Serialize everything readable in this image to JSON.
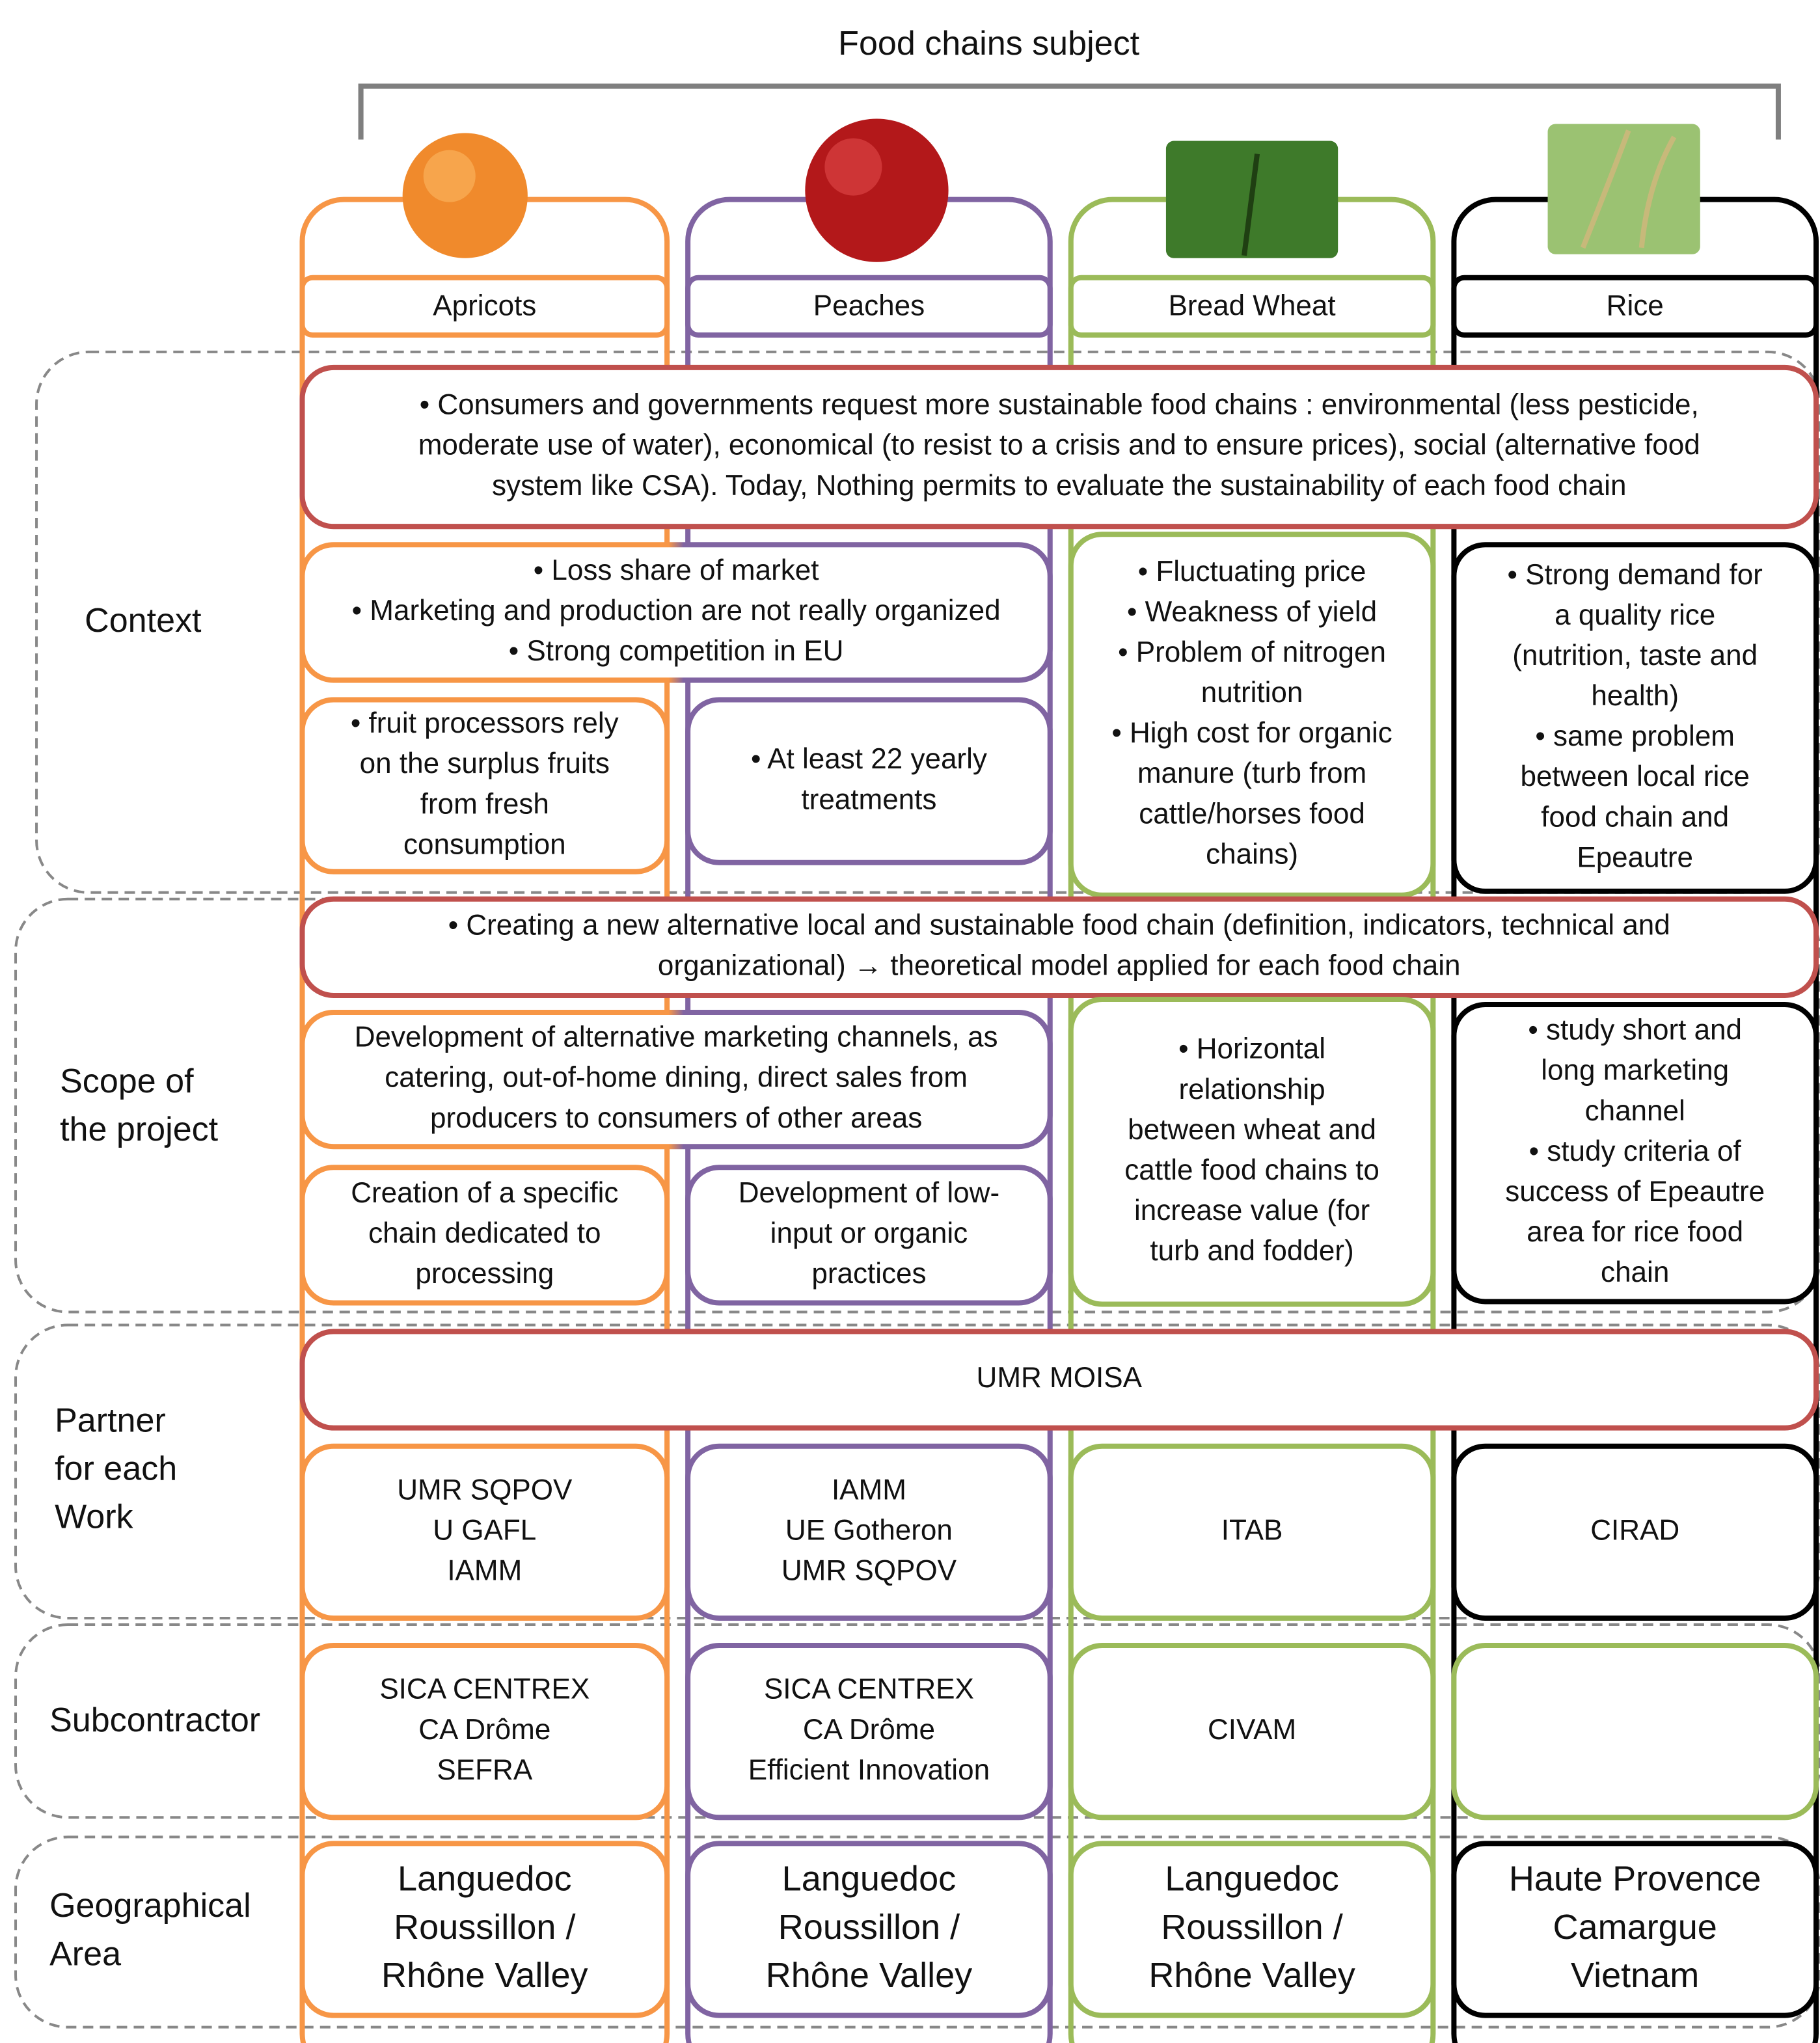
{
  "title": "Food chains subject",
  "columns": [
    "Apricots",
    "Peaches",
    "Bread Wheat",
    "Rice"
  ],
  "row_labels": [
    [
      "Context"
    ],
    [
      "Scope of",
      "the project"
    ],
    [
      "Partner",
      "for each",
      "Work"
    ],
    [
      "Subcontractor"
    ],
    [
      "Geographical",
      "Area"
    ]
  ],
  "cells": [
    [
      "• Consumers and governments request more sustainable food chains : environmental (less pesticide,",
      "moderate use of water), economical (to resist to a crisis and to ensure prices), social (alternative food",
      "system like CSA). Today, Nothing permits to evaluate the sustainability of each food chain"
    ],
    [
      "• Loss share of market",
      "• Marketing and production are not really organized",
      "• Strong competition in EU"
    ],
    [
      "• Fluctuating price",
      "• Weakness of yield",
      "• Problem of nitrogen",
      "nutrition",
      "• High cost for organic",
      "manure (turb from",
      "cattle/horses food",
      "chains)"
    ],
    [
      "• Strong demand for",
      "a quality rice",
      "(nutrition, taste and",
      "health)",
      "• same problem",
      "between local rice",
      "food chain and",
      "Epeautre"
    ],
    [
      "• fruit processors rely",
      "on the surplus fruits",
      "from fresh",
      "consumption"
    ],
    [
      "• At least 22 yearly",
      "treatments"
    ],
    [
      "• Creating a new alternative local and sustainable food chain (definition, indicators, technical and",
      "organizational) → theoretical model applied for each food chain"
    ],
    [
      "Development of alternative marketing channels, as",
      "catering, out-of-home dining, direct sales from",
      "producers to consumers of other areas"
    ],
    [
      "• Horizontal",
      "relationship",
      "between wheat and",
      "cattle food chains to",
      "increase value (for",
      "turb and fodder)"
    ],
    [
      "• study short and",
      "long marketing",
      "channel",
      "• study criteria of",
      "success of Epeautre",
      "area for rice food",
      "chain"
    ],
    [
      "Creation of a specific",
      "chain dedicated to",
      "processing"
    ],
    [
      "Development of low-",
      "input or organic",
      "practices"
    ],
    [
      "UMR MOISA"
    ],
    [
      "UMR SQPOV",
      "U GAFL",
      "IAMM"
    ],
    [
      "IAMM",
      "UE Gotheron",
      "UMR SQPOV"
    ],
    [
      "ITAB"
    ],
    [
      "CIRAD"
    ],
    [
      "SICA CENTREX",
      "CA Drôme",
      "SEFRA"
    ],
    [
      "SICA CENTREX",
      "CA Drôme",
      "Efficient Innovation"
    ],
    [
      "CIVAM"
    ],
    [
      "Languedoc",
      "Roussillon /",
      "Rhône Valley"
    ],
    [
      "Languedoc",
      "Roussillon /",
      "Rhône Valley"
    ],
    [
      "Languedoc",
      "Roussillon /",
      "Rhône Valley"
    ],
    [
      "Haute Provence",
      "Camargue",
      "Vietnam"
    ]
  ]
}
